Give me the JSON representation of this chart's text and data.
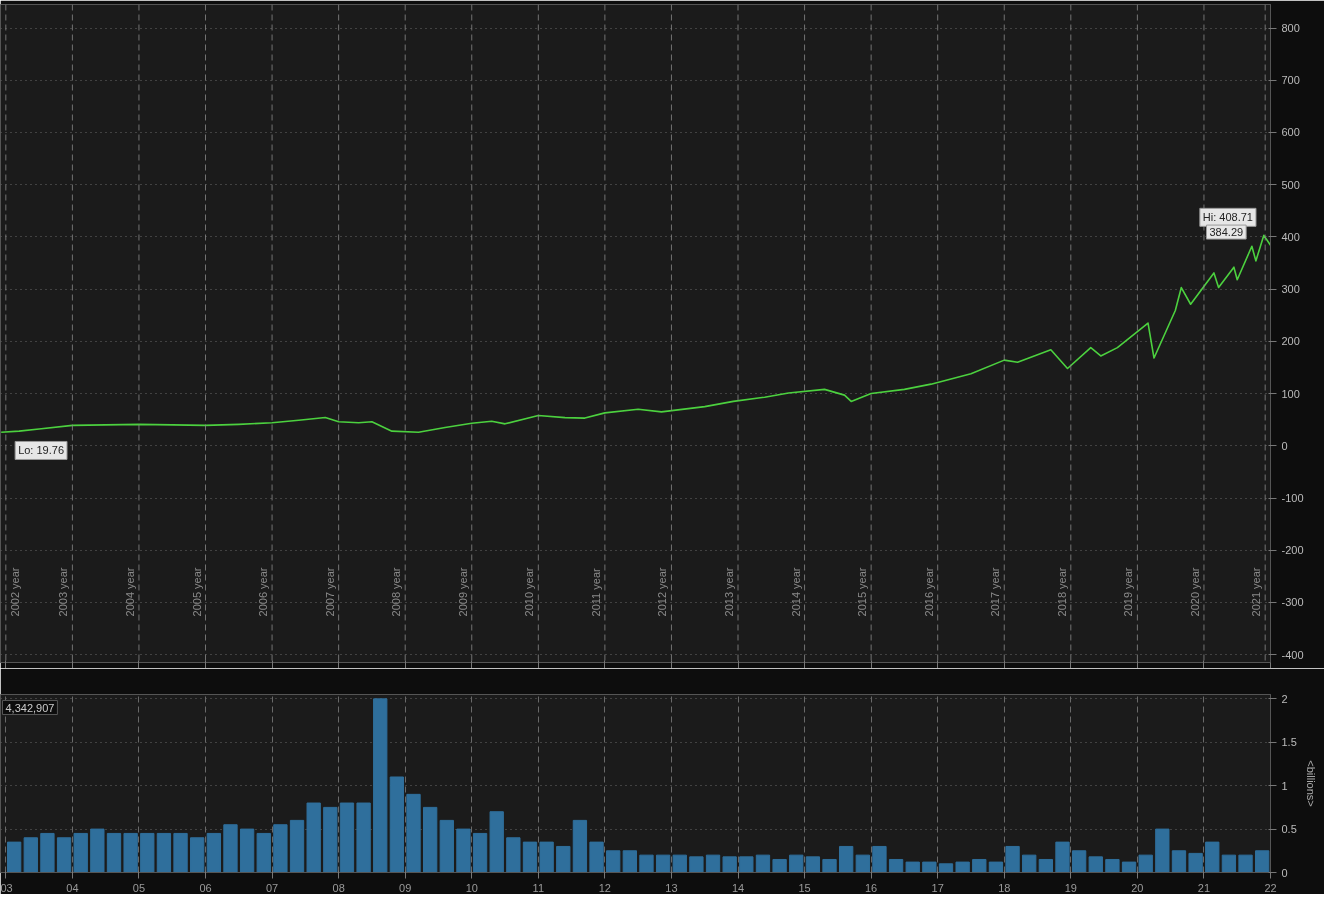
{
  "chart_data": [
    {
      "type": "line",
      "x": [
        2002.93,
        2003.2,
        2003.5,
        2004.0,
        2004.5,
        2005.0,
        2005.5,
        2006.0,
        2006.5,
        2007.0,
        2007.4,
        2007.8,
        2008.0,
        2008.3,
        2008.5,
        2008.8,
        2009.2,
        2009.6,
        2010.0,
        2010.3,
        2010.5,
        2011.0,
        2011.4,
        2011.7,
        2012.0,
        2012.5,
        2012.85,
        2013.5,
        2013.93,
        2014.4,
        2014.76,
        2015.3,
        2015.6,
        2015.7,
        2016.0,
        2016.5,
        2016.9,
        2017.5,
        2018.0,
        2018.2,
        2018.7,
        2018.95,
        2019.3,
        2019.45,
        2019.7,
        2020.16,
        2020.25,
        2020.57,
        2020.66,
        2020.8,
        2021.15,
        2021.22,
        2021.45,
        2021.5,
        2021.72,
        2021.78,
        2021.9,
        2022.0
      ],
      "series": [
        {
          "color": "#4cd13f",
          "values": [
            26,
            28,
            32,
            39,
            40,
            41,
            40,
            39,
            41,
            44,
            49,
            54,
            46,
            44,
            46,
            28,
            26,
            35,
            43,
            47,
            42,
            58,
            54,
            53,
            63,
            70,
            65,
            75,
            85,
            93,
            101,
            108,
            97,
            85,
            100,
            108,
            118,
            138,
            164,
            160,
            184,
            148,
            188,
            172,
            188,
            235,
            168,
            259,
            303,
            271,
            331,
            303,
            342,
            318,
            382,
            354,
            403,
            384
          ]
        }
      ],
      "xlim": [
        2002.92,
        2022.0
      ],
      "xticks": [
        2003,
        2004,
        2005,
        2006,
        2007,
        2008,
        2009,
        2010,
        2011,
        2012,
        2013,
        2014,
        2015,
        2016,
        2017,
        2018,
        2019,
        2020,
        2021,
        2022
      ],
      "tick_labels": "y",
      "ylim": [
        -415,
        845
      ],
      "yticks": [
        -400,
        -300,
        -200,
        -100,
        0,
        100,
        200,
        300,
        400,
        500,
        600,
        700,
        800
      ],
      "grid": "y",
      "annotations": [
        {
          "text": "Hi: 408.71",
          "x": 2021.9,
          "y": 408.71
        },
        {
          "text": "384.29",
          "x": 2022.0,
          "y": 384.29
        },
        {
          "text": "Lo: 19.76",
          "x": 2003.2,
          "y": 19.76
        }
      ],
      "ref_lines": [
        {
          "axis": "x",
          "value": 2003,
          "label": "2002 year"
        },
        {
          "axis": "x",
          "value": 2004,
          "label": "2003 year"
        },
        {
          "axis": "x",
          "value": 2005,
          "label": "2004 year"
        },
        {
          "axis": "x",
          "value": 2006,
          "label": "2005 year"
        },
        {
          "axis": "x",
          "value": 2007,
          "label": "2006 year"
        },
        {
          "axis": "x",
          "value": 2008,
          "label": "2007 year"
        },
        {
          "axis": "x",
          "value": 2009,
          "label": "2008 year"
        },
        {
          "axis": "x",
          "value": 2010,
          "label": "2009 year"
        },
        {
          "axis": "x",
          "value": 2011,
          "label": "2010 year"
        },
        {
          "axis": "x",
          "value": 2012,
          "label": "2011 year"
        },
        {
          "axis": "x",
          "value": 2013,
          "label": "2012 year"
        },
        {
          "axis": "x",
          "value": 2014,
          "label": "2013 year"
        },
        {
          "axis": "x",
          "value": 2015,
          "label": "2014 year"
        },
        {
          "axis": "x",
          "value": 2016,
          "label": "2015 year"
        },
        {
          "axis": "x",
          "value": 2017,
          "label": "2016 year"
        },
        {
          "axis": "x",
          "value": 2018,
          "label": "2017 year"
        },
        {
          "axis": "x",
          "value": 2019,
          "label": "2018 year"
        },
        {
          "axis": "x",
          "value": 2020,
          "label": "2019 year"
        },
        {
          "axis": "x",
          "value": 2021,
          "label": "2020 year"
        },
        {
          "axis": "x",
          "value": 2021.92,
          "label": "2021 year"
        }
      ]
    },
    {
      "type": "bar",
      "x": [
        2003.125,
        2003.375,
        2003.625,
        2003.875,
        2004.125,
        2004.375,
        2004.625,
        2004.875,
        2005.125,
        2005.375,
        2005.625,
        2005.875,
        2006.125,
        2006.375,
        2006.625,
        2006.875,
        2007.125,
        2007.375,
        2007.625,
        2007.875,
        2008.125,
        2008.375,
        2008.625,
        2008.875,
        2009.125,
        2009.375,
        2009.625,
        2009.875,
        2010.125,
        2010.375,
        2010.625,
        2010.875,
        2011.125,
        2011.375,
        2011.625,
        2011.875,
        2012.125,
        2012.375,
        2012.625,
        2012.875,
        2013.125,
        2013.375,
        2013.625,
        2013.875,
        2014.125,
        2014.375,
        2014.625,
        2014.875,
        2015.125,
        2015.375,
        2015.625,
        2015.875,
        2016.125,
        2016.375,
        2016.625,
        2016.875,
        2017.125,
        2017.375,
        2017.625,
        2017.875,
        2018.125,
        2018.375,
        2018.625,
        2018.875,
        2019.125,
        2019.375,
        2019.625,
        2019.875,
        2020.125,
        2020.375,
        2020.625,
        2020.875,
        2021.125,
        2021.375,
        2021.625,
        2021.875
      ],
      "series": [
        {
          "color": "#2f6f9c",
          "values": [
            0.35,
            0.4,
            0.45,
            0.4,
            0.45,
            0.5,
            0.45,
            0.45,
            0.45,
            0.45,
            0.45,
            0.4,
            0.45,
            0.55,
            0.5,
            0.45,
            0.55,
            0.6,
            0.8,
            0.75,
            0.8,
            0.8,
            2.0,
            1.1,
            0.9,
            0.75,
            0.6,
            0.5,
            0.45,
            0.7,
            0.4,
            0.35,
            0.35,
            0.3,
            0.6,
            0.35,
            0.25,
            0.25,
            0.2,
            0.2,
            0.2,
            0.18,
            0.2,
            0.18,
            0.18,
            0.2,
            0.15,
            0.2,
            0.18,
            0.15,
            0.3,
            0.2,
            0.3,
            0.15,
            0.12,
            0.12,
            0.1,
            0.12,
            0.15,
            0.12,
            0.3,
            0.2,
            0.15,
            0.35,
            0.25,
            0.18,
            0.15,
            0.12,
            0.2,
            0.5,
            0.25,
            0.22,
            0.35,
            0.2,
            0.2,
            0.25
          ]
        }
      ],
      "xlim": [
        2002.92,
        2022.0
      ],
      "xticks": [
        {
          "value": 2003,
          "label": "03"
        },
        {
          "value": 2004,
          "label": "04"
        },
        {
          "value": 2005,
          "label": "05"
        },
        {
          "value": 2006,
          "label": "06"
        },
        {
          "value": 2007,
          "label": "07"
        },
        {
          "value": 2008,
          "label": "08"
        },
        {
          "value": 2009,
          "label": "09"
        },
        {
          "value": 2010,
          "label": "10"
        },
        {
          "value": 2011,
          "label": "11"
        },
        {
          "value": 2012,
          "label": "12"
        },
        {
          "value": 2013,
          "label": "13"
        },
        {
          "value": 2014,
          "label": "14"
        },
        {
          "value": 2015,
          "label": "15"
        },
        {
          "value": 2016,
          "label": "16"
        },
        {
          "value": 2017,
          "label": "17"
        },
        {
          "value": 2018,
          "label": "18"
        },
        {
          "value": 2019,
          "label": "19"
        },
        {
          "value": 2020,
          "label": "20"
        },
        {
          "value": 2021,
          "label": "21"
        },
        {
          "value": 2022,
          "label": "22"
        }
      ],
      "ylim": [
        0,
        2.05
      ],
      "yticks": [
        0,
        0.5,
        1,
        1.5,
        2
      ],
      "ylabel": "<billions>",
      "grid": true,
      "annotations": [
        "4,342,907"
      ]
    }
  ]
}
